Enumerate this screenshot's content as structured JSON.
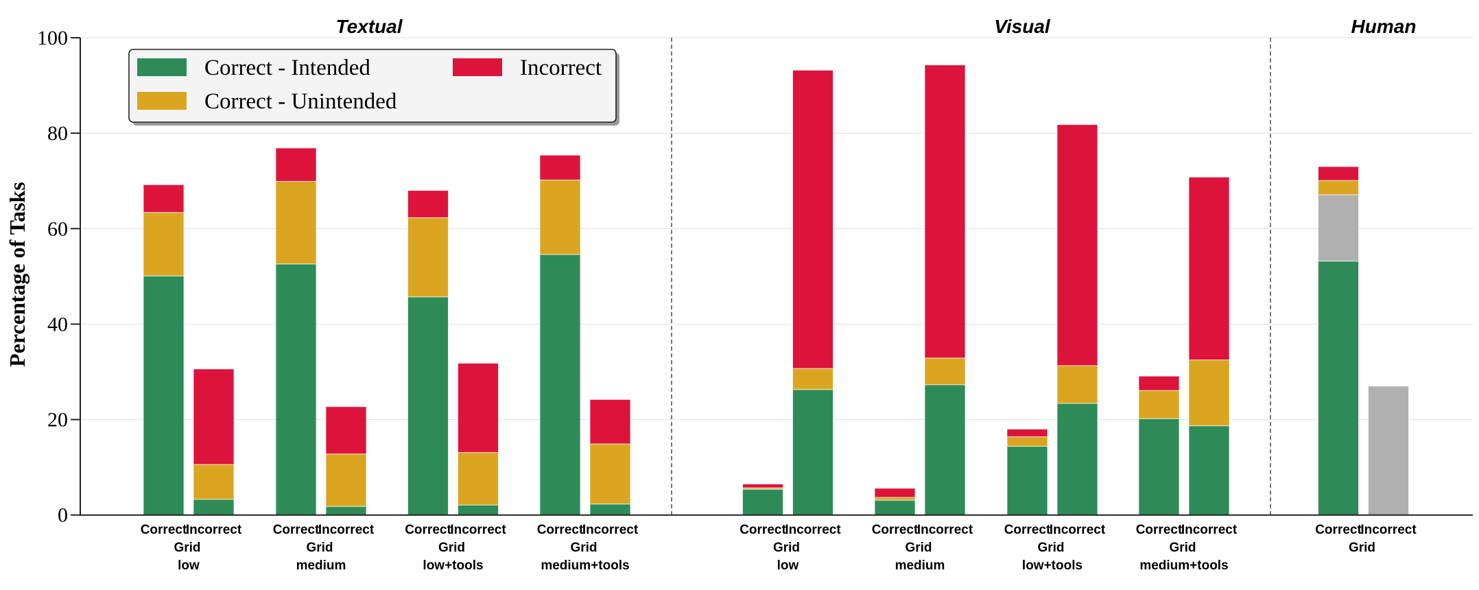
{
  "chart_data": {
    "type": "bar",
    "stacked": true,
    "ylabel": "Percentage of Tasks",
    "ylim": [
      0,
      100
    ],
    "yticks": [
      0,
      20,
      40,
      60,
      80,
      100
    ],
    "ytick_labels": [
      "0",
      "20",
      "40",
      "60",
      "80",
      "100"
    ],
    "grid": "horizontal",
    "legend": {
      "placement": "top-left",
      "entries": [
        {
          "key": "intended",
          "label": "Correct - Intended",
          "color": "#2E8B57"
        },
        {
          "key": "unintended",
          "label": "Correct - Unintended",
          "color": "#DAA520"
        },
        {
          "key": "incorrect",
          "label": "Incorrect",
          "color": "#DC143C"
        }
      ]
    },
    "colors": {
      "intended": "#2E8B57",
      "unintended": "#DAA520",
      "incorrect": "#DC143C",
      "other": "#B0B0B0"
    },
    "bar_labels": [
      "Correct",
      "Incorrect"
    ],
    "sections": [
      {
        "title": "Textual",
        "groups": [
          {
            "line1": "Grid",
            "line2": "low",
            "bars": [
              {
                "label": "Correct",
                "segments": {
                  "intended": 50.1,
                  "unintended": 13.3,
                  "incorrect": 5.8
                }
              },
              {
                "label": "Incorrect",
                "segments": {
                  "intended": 3.3,
                  "unintended": 7.3,
                  "incorrect": 20.0
                }
              }
            ]
          },
          {
            "line1": "Grid",
            "line2": "medium",
            "bars": [
              {
                "label": "Correct",
                "segments": {
                  "intended": 52.6,
                  "unintended": 17.3,
                  "incorrect": 7.0
                }
              },
              {
                "label": "Incorrect",
                "segments": {
                  "intended": 1.8,
                  "unintended": 11.0,
                  "incorrect": 9.9
                }
              }
            ]
          },
          {
            "line1": "Grid",
            "line2": "low+tools",
            "bars": [
              {
                "label": "Correct",
                "segments": {
                  "intended": 45.7,
                  "unintended": 16.6,
                  "incorrect": 5.7
                }
              },
              {
                "label": "Incorrect",
                "segments": {
                  "intended": 2.1,
                  "unintended": 11.0,
                  "incorrect": 18.7
                }
              }
            ]
          },
          {
            "line1": "Grid",
            "line2": "medium+tools",
            "bars": [
              {
                "label": "Correct",
                "segments": {
                  "intended": 54.6,
                  "unintended": 15.6,
                  "incorrect": 5.2
                }
              },
              {
                "label": "Incorrect",
                "segments": {
                  "intended": 2.3,
                  "unintended": 12.6,
                  "incorrect": 9.3
                }
              }
            ]
          }
        ]
      },
      {
        "title": "Visual",
        "groups": [
          {
            "line1": "Grid",
            "line2": "low",
            "bars": [
              {
                "label": "Correct",
                "segments": {
                  "intended": 5.4,
                  "unintended": 0.3,
                  "incorrect": 0.8
                }
              },
              {
                "label": "Incorrect",
                "segments": {
                  "intended": 26.3,
                  "unintended": 4.4,
                  "incorrect": 62.5
                }
              }
            ]
          },
          {
            "line1": "Grid",
            "line2": "medium",
            "bars": [
              {
                "label": "Correct",
                "segments": {
                  "intended": 3.1,
                  "unintended": 0.6,
                  "incorrect": 1.9
                }
              },
              {
                "label": "Incorrect",
                "segments": {
                  "intended": 27.3,
                  "unintended": 5.6,
                  "incorrect": 61.4
                }
              }
            ]
          },
          {
            "line1": "Grid",
            "line2": "low+tools",
            "bars": [
              {
                "label": "Correct",
                "segments": {
                  "intended": 14.4,
                  "unintended": 2.0,
                  "incorrect": 1.6
                }
              },
              {
                "label": "Incorrect",
                "segments": {
                  "intended": 23.4,
                  "unintended": 7.9,
                  "incorrect": 50.5
                }
              }
            ]
          },
          {
            "line1": "Grid",
            "line2": "medium+tools",
            "bars": [
              {
                "label": "Correct",
                "segments": {
                  "intended": 20.2,
                  "unintended": 5.9,
                  "incorrect": 3.0
                }
              },
              {
                "label": "Incorrect",
                "segments": {
                  "intended": 18.7,
                  "unintended": 13.8,
                  "incorrect": 38.3
                }
              }
            ]
          }
        ]
      },
      {
        "title": "Human",
        "groups": [
          {
            "line1": "Grid",
            "line2": "",
            "bars": [
              {
                "label": "Correct",
                "segments": {
                  "intended": 53.2,
                  "other": 13.9,
                  "unintended": 3.0,
                  "incorrect": 2.9
                }
              },
              {
                "label": "Incorrect",
                "segments": {
                  "other": 27.0
                }
              }
            ]
          }
        ]
      }
    ]
  }
}
